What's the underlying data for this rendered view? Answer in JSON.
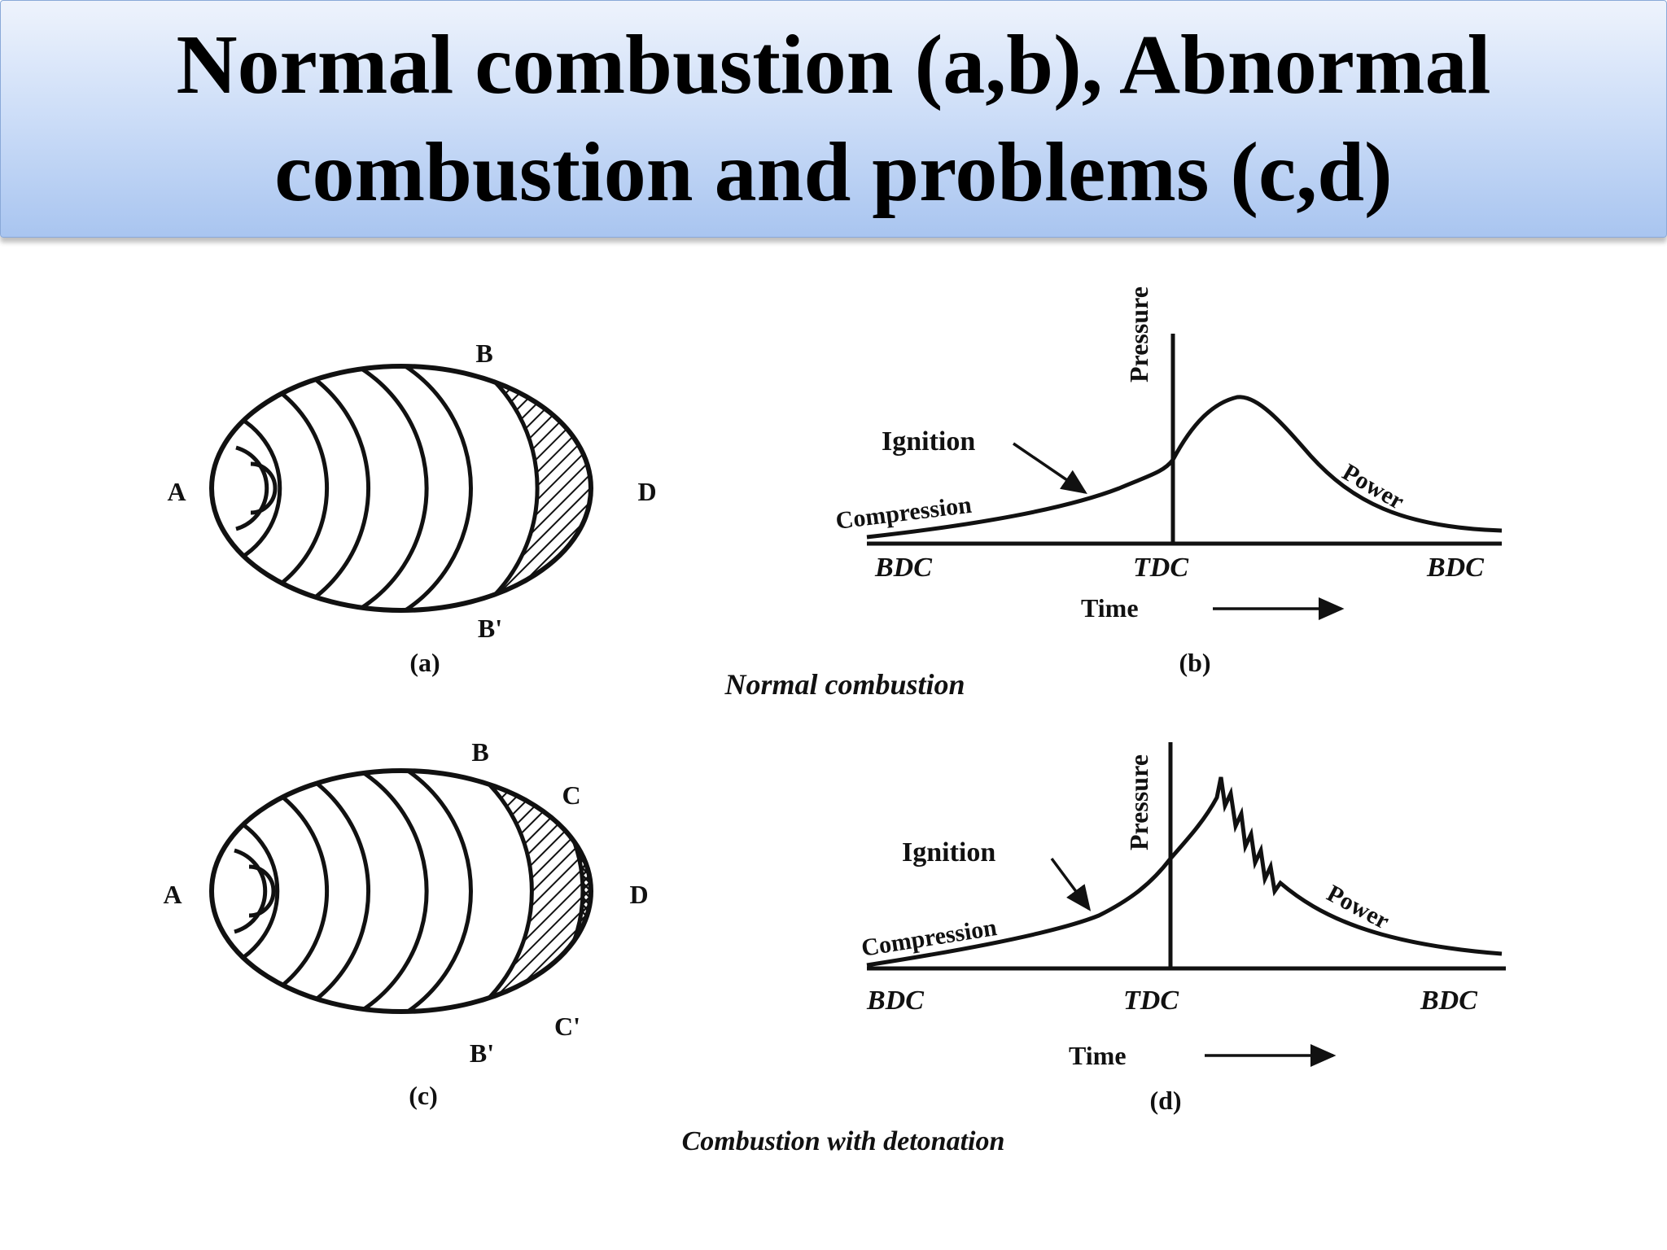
{
  "title": {
    "line1": "Normal combustion (a,b), Abnormal",
    "line2": "combustion and problems (c,d)"
  },
  "panel_a": {
    "label": "(a)",
    "point_a": "A",
    "point_b": "B",
    "point_b_prime": "B'",
    "point_d": "D"
  },
  "panel_b": {
    "label": "(b)",
    "y_axis": "Pressure",
    "ignition": "Ignition",
    "compression": "Compression",
    "power": "Power",
    "bdc_left": "BDC",
    "tdc": "TDC",
    "bdc_right": "BDC",
    "x_axis": "Time"
  },
  "caption_top": "Normal combustion",
  "panel_c": {
    "label": "(c)",
    "point_a": "A",
    "point_b": "B",
    "point_b_prime": "B'",
    "point_c": "C",
    "point_c_prime": "C'",
    "point_d": "D"
  },
  "panel_d": {
    "label": "(d)",
    "y_axis": "Pressure",
    "ignition": "Ignition",
    "compression": "Compression",
    "power": "Power",
    "bdc_left": "BDC",
    "tdc": "TDC",
    "bdc_right": "BDC",
    "x_axis": "Time"
  },
  "caption_bottom": "Combustion with detonation"
}
